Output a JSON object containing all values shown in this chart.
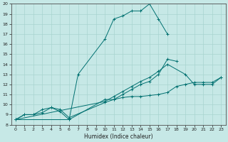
{
  "xlabel": "Humidex (Indice chaleur)",
  "xlim": [
    -0.5,
    23.5
  ],
  "ylim": [
    8,
    20
  ],
  "xticks": [
    0,
    1,
    2,
    3,
    4,
    5,
    6,
    7,
    8,
    9,
    10,
    11,
    12,
    13,
    14,
    15,
    16,
    17,
    18,
    19,
    20,
    21,
    22,
    23
  ],
  "yticks": [
    8,
    9,
    10,
    11,
    12,
    13,
    14,
    15,
    16,
    17,
    18,
    19,
    20
  ],
  "bg_color": "#c6e8e6",
  "line_color": "#007070",
  "grid_color": "#a8d4d0",
  "line1_x": [
    0,
    1,
    2,
    3,
    4,
    5,
    6,
    10,
    11,
    12,
    13,
    14,
    15,
    16,
    17,
    18,
    19,
    20,
    21,
    22,
    23
  ],
  "line1_y": [
    8.5,
    9.0,
    9.0,
    9.2,
    9.7,
    9.3,
    8.5,
    10.5,
    10.5,
    10.7,
    10.8,
    10.8,
    10.9,
    11.0,
    11.2,
    11.8,
    12.0,
    12.2,
    12.2,
    12.2,
    12.7
  ],
  "line2_x": [
    0,
    1,
    2,
    3,
    4,
    5,
    6,
    10,
    11,
    12,
    13,
    14,
    15,
    16,
    17,
    18
  ],
  "line2_y": [
    8.5,
    9.0,
    9.0,
    9.5,
    9.7,
    9.5,
    8.7,
    10.2,
    10.5,
    11.0,
    11.5,
    12.0,
    12.3,
    13.0,
    14.5,
    14.3
  ],
  "line3_x": [
    0,
    6,
    7,
    10,
    11,
    12,
    13,
    14,
    15,
    16,
    17
  ],
  "line3_y": [
    8.5,
    8.5,
    13.0,
    16.5,
    18.5,
    18.8,
    19.3,
    19.3,
    20.0,
    18.5,
    17.0
  ],
  "line4_x": [
    0,
    10,
    11,
    12,
    13,
    14,
    15,
    16,
    17,
    19,
    20,
    21,
    22,
    23
  ],
  "line4_y": [
    8.5,
    10.3,
    10.8,
    11.3,
    11.8,
    12.3,
    12.7,
    13.3,
    14.0,
    13.0,
    12.0,
    12.0,
    12.0,
    12.7
  ]
}
